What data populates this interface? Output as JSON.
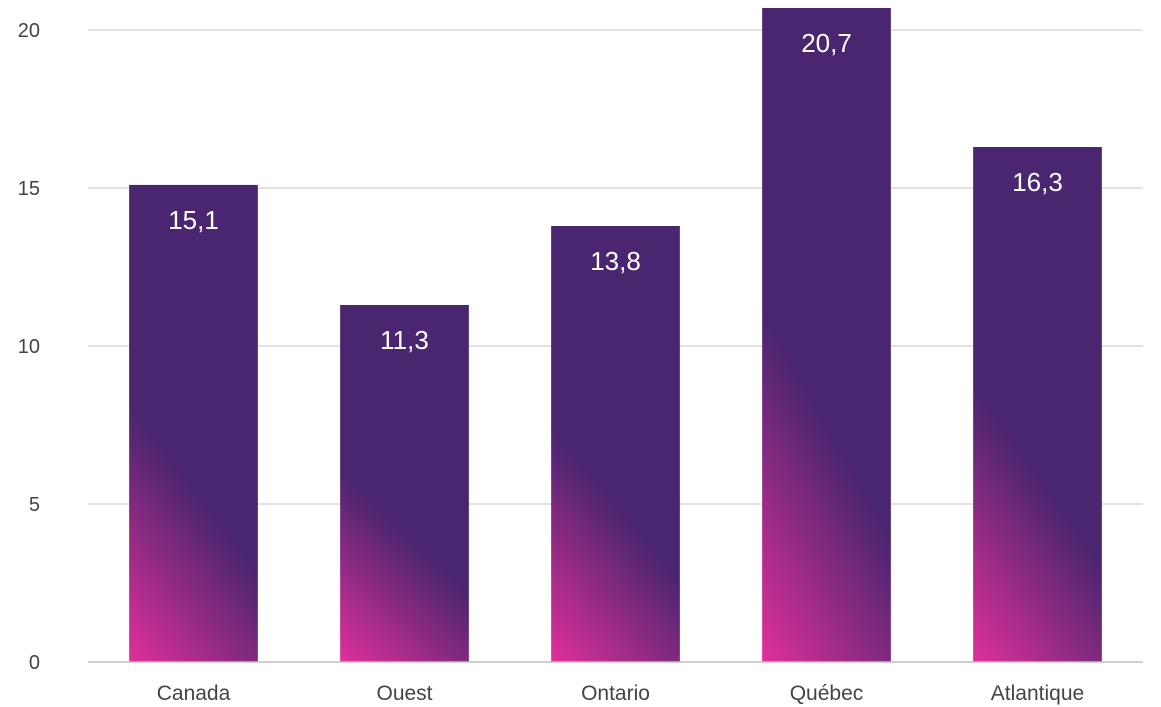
{
  "chart_data": {
    "type": "bar",
    "title": "",
    "xlabel": "",
    "ylabel": "",
    "categories": [
      "Canada",
      "Ouest",
      "Ontario",
      "Québec",
      "Atlantique"
    ],
    "values": [
      15.1,
      11.3,
      13.8,
      20.7,
      16.3
    ],
    "data_labels": [
      "15,1",
      "11,3",
      "13,8",
      "20,7",
      "16,3"
    ],
    "y_ticks": [
      0,
      5,
      10,
      15,
      20
    ],
    "y_tick_labels": [
      "0",
      "5",
      "10",
      "15",
      "20"
    ],
    "ylim": [
      0,
      20.7
    ],
    "grid": true,
    "legend": "none",
    "colors": {
      "bar_top": "#4a2570",
      "bar_mid": "#4a2570",
      "bar_bottom": "#e0309a",
      "grid": "#d9d9d9",
      "axis": "#bfbfbf",
      "tick_text": "#444444",
      "label_text": "#ffffff"
    }
  }
}
